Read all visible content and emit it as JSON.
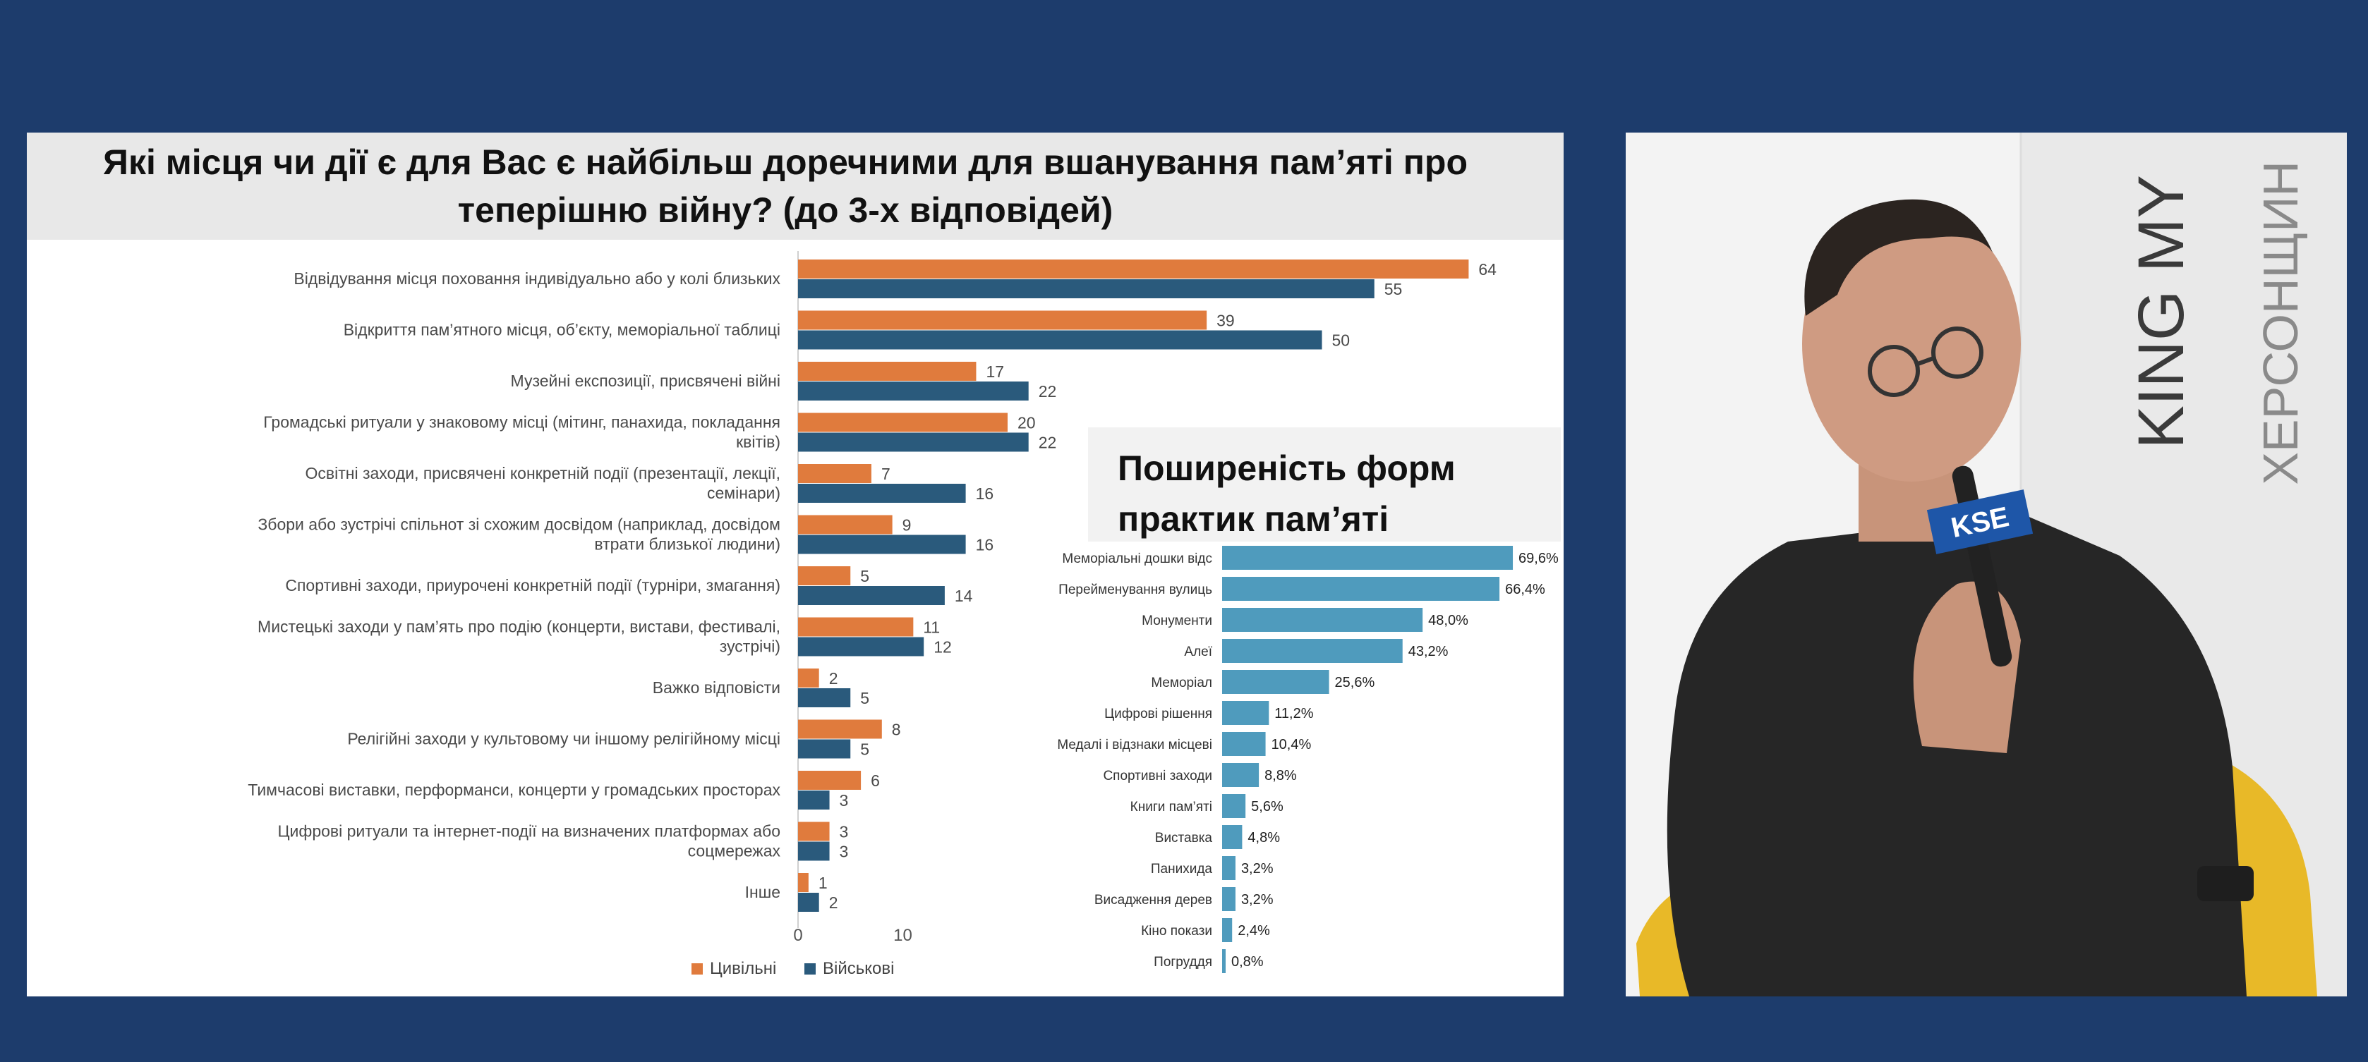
{
  "slide": {
    "title": "Які місця чи дії є для Вас є найбільш доречними для вшанування пам’яті про теперішню війну? (до 3-х відповідей)"
  },
  "inset": {
    "title": "Поширеність форм практик пам’яті"
  },
  "video": {
    "backdrop_text_1": "KING MY",
    "backdrop_text_2": "ХЕРСОНЩИН",
    "mic_logo": "KSE"
  },
  "colors": {
    "background": "#1d3c6c",
    "civilian": "#e07b3d",
    "military": "#2a5a7c",
    "inset_bar": "#4f9bbd"
  },
  "chart_data": [
    {
      "type": "bar",
      "orientation": "horizontal",
      "title": "Які місця чи дії є для Вас є найбільш доречними для вшанування пам’яті про теперішню війну? (до 3-х відповідей)",
      "categories": [
        "Відвідування місця поховання індивідуально або у колі близьких",
        "Відкриття пам’ятного місця, об’єкту, меморіальної таблиці",
        "Музейні експозиції, присвячені війні",
        "Громадські ритуали у знаковому місці (мітинг, панахида, покладання квітів)",
        "Освітні заходи, присвячені конкретній події (презентації, лекції, семінари)",
        "Збори або зустрічі спільнот зі схожим досвідом (наприклад, досвідом втрати близької людини)",
        "Спортивні заходи, приурочені конкретній події (турніри, змагання)",
        "Мистецькі заходи у пам’ять про подію (концерти, вистави, фестивалі, зустрічі)",
        "Важко відповісти",
        "Релігійні заходи у культовому чи іншому релігійному місці",
        "Тимчасові виставки, перформанси, концерти у громадських просторах",
        "Цифрові ритуали та інтернет-події на визначених платформах або соцмережах",
        "Інше"
      ],
      "series": [
        {
          "name": "Цивільні",
          "color": "#e07b3d",
          "values": [
            64,
            39,
            17,
            20,
            7,
            9,
            5,
            11,
            2,
            8,
            6,
            3,
            1
          ]
        },
        {
          "name": "Військові",
          "color": "#2a5a7c",
          "values": [
            55,
            50,
            22,
            22,
            16,
            16,
            14,
            12,
            5,
            5,
            3,
            3,
            2
          ]
        }
      ],
      "x_ticks": [
        0,
        10
      ],
      "xlim": [
        0,
        66
      ],
      "legend": "bottom",
      "grid": false
    },
    {
      "type": "bar",
      "orientation": "horizontal",
      "title": "Поширеність форм практик пам’яті",
      "categories": [
        "Меморіальні дошки відс",
        "Перейменування вулиць",
        "Монументи",
        "Алеї",
        "Меморіал",
        "Цифрові рішення",
        "Медалі і відзнаки місцеві",
        "Спортивні заходи",
        "Книги пам’яті",
        "Виставка",
        "Панихида",
        "Висадження дерев",
        "Кіно покази",
        "Погруддя"
      ],
      "values": [
        69.6,
        66.4,
        48.0,
        43.2,
        25.6,
        11.2,
        10.4,
        8.8,
        5.6,
        4.8,
        3.2,
        3.2,
        2.4,
        0.8
      ],
      "value_labels": [
        "69,6%",
        "66,4%",
        "48,0%",
        "43,2%",
        "25,6%",
        "11,2%",
        "10,4%",
        "8,8%",
        "5,6%",
        "4,8%",
        "3,2%",
        "3,2%",
        "2,4%",
        "0,8%"
      ],
      "color": "#4f9bbd",
      "xlim": [
        0,
        70
      ],
      "grid": false,
      "legend": "none"
    }
  ]
}
